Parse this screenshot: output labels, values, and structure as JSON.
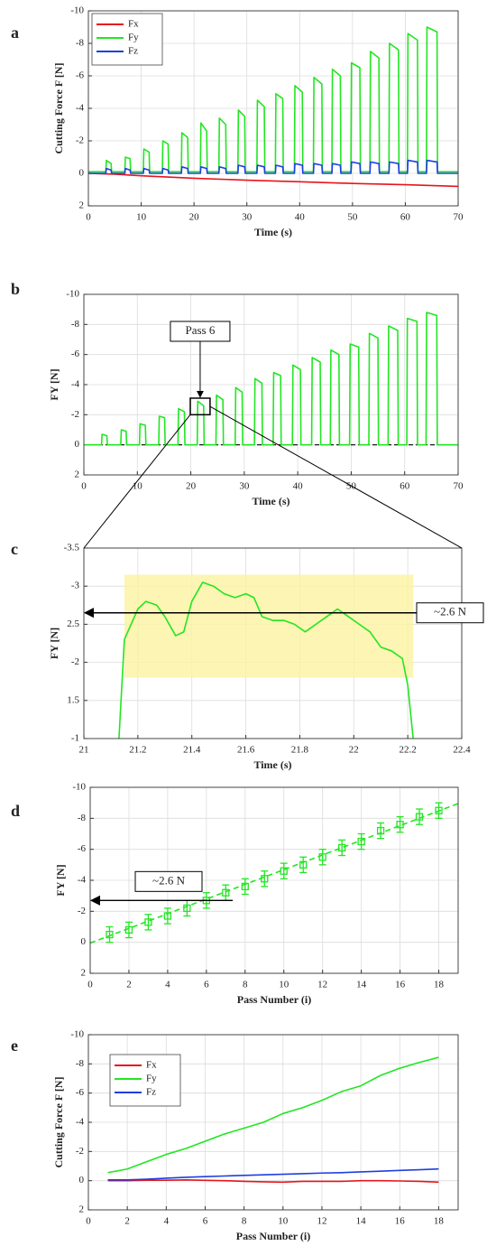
{
  "chart_data": [
    {
      "label": "a",
      "type": "line",
      "ylabel": "Cutting Force F [N]",
      "xlabel": "Time (s)",
      "xlim": [
        0,
        70
      ],
      "xticks": [
        0,
        10,
        20,
        30,
        40,
        50,
        60,
        70
      ],
      "ylim": [
        -10,
        2
      ],
      "yticks": [
        -10,
        -8,
        -6,
        -4,
        -2,
        0,
        2
      ],
      "y_reversed": true,
      "grid": true,
      "legend": "upper left",
      "x": [
        0,
        3.3,
        3.4,
        4.3,
        4.4,
        6.9,
        7.0,
        7.9,
        8.0,
        10.4,
        10.5,
        11.5,
        11.6,
        14.0,
        14.1,
        15.1,
        15.2,
        17.6,
        17.7,
        18.8,
        18.9,
        21.2,
        21.3,
        22.4,
        22.5,
        24.7,
        24.8,
        26.0,
        26.1,
        28.3,
        28.4,
        29.6,
        29.7,
        31.9,
        32.0,
        33.3,
        33.4,
        35.4,
        35.5,
        36.8,
        36.9,
        39.0,
        39.1,
        40.5,
        40.6,
        42.6,
        42.7,
        44.2,
        44.3,
        46.1,
        46.2,
        47.7,
        47.8,
        49.7,
        49.8,
        51.4,
        51.5,
        53.3,
        53.4,
        55.0,
        55.1,
        56.9,
        57.0,
        58.7,
        58.8,
        60.4,
        60.5,
        62.3,
        62.4,
        64.0,
        64.1,
        66.0,
        66.1,
        70
      ],
      "series": [
        {
          "name": "Fx",
          "color": "#e8141c",
          "x": [
            0,
            5,
            10,
            20,
            30,
            40,
            50,
            60,
            70
          ],
          "values": [
            0,
            0.05,
            0.15,
            0.3,
            0.42,
            0.52,
            0.62,
            0.7,
            0.8
          ]
        },
        {
          "name": "Fy",
          "color": "#22e622",
          "values": [
            -0.1,
            -0.1,
            -0.8,
            -0.6,
            -0.1,
            -0.1,
            -1.0,
            -0.9,
            -0.1,
            -0.1,
            -1.5,
            -1.3,
            -0.1,
            -0.1,
            -2.0,
            -1.8,
            -0.1,
            -0.1,
            -2.5,
            -2.2,
            -0.1,
            -0.1,
            -3.1,
            -2.6,
            -0.1,
            -0.1,
            -3.4,
            -3.0,
            -0.1,
            -0.1,
            -3.9,
            -3.5,
            -0.1,
            -0.1,
            -4.5,
            -4.1,
            -0.1,
            -0.1,
            -4.9,
            -4.6,
            -0.1,
            -0.1,
            -5.4,
            -5.0,
            -0.1,
            -0.1,
            -5.9,
            -5.5,
            -0.1,
            -0.1,
            -6.4,
            -6.0,
            -0.1,
            -0.1,
            -6.8,
            -6.5,
            -0.1,
            -0.1,
            -7.5,
            -7.1,
            -0.1,
            -0.1,
            -8.0,
            -7.6,
            -0.1,
            -0.1,
            -8.6,
            -8.2,
            -0.1,
            -0.1,
            -9.0,
            -8.7,
            -0.1,
            -0.1
          ]
        },
        {
          "name": "Fz",
          "color": "#1e3fe0",
          "values": [
            0,
            0,
            -0.3,
            -0.2,
            0,
            0,
            -0.3,
            -0.2,
            0,
            0,
            -0.3,
            -0.2,
            0,
            0,
            -0.3,
            -0.2,
            0,
            0,
            -0.4,
            -0.3,
            0,
            0,
            -0.4,
            -0.3,
            0,
            0,
            -0.4,
            -0.3,
            0,
            0,
            -0.5,
            -0.4,
            0,
            0,
            -0.5,
            -0.4,
            0,
            0,
            -0.5,
            -0.4,
            0,
            0,
            -0.6,
            -0.5,
            0,
            0,
            -0.6,
            -0.5,
            0,
            0,
            -0.6,
            -0.5,
            0,
            0,
            -0.7,
            -0.6,
            0,
            0,
            -0.7,
            -0.6,
            0,
            0,
            -0.7,
            -0.6,
            0,
            0,
            -0.8,
            -0.7,
            0,
            0,
            -0.8,
            -0.7,
            0,
            0
          ]
        }
      ]
    },
    {
      "label": "b",
      "type": "line",
      "ylabel": "FY [N]",
      "xlabel": "Time (s)",
      "xlim": [
        0,
        70
      ],
      "xticks": [
        0,
        10,
        20,
        30,
        40,
        50,
        60,
        70
      ],
      "ylim": [
        -10,
        2
      ],
      "yticks": [
        -10,
        -8,
        -6,
        -4,
        -2,
        0,
        2
      ],
      "y_reversed": true,
      "grid": true,
      "reference_line": 0,
      "zoom_box": {
        "x": [
          19.9,
          23.6
        ],
        "y": [
          -2.0,
          -3.1
        ]
      },
      "zoom_label": "Pass 6",
      "x": [
        0,
        3.3,
        3.4,
        4.3,
        4.4,
        6.9,
        7.0,
        7.9,
        8.0,
        10.4,
        10.5,
        11.5,
        11.6,
        14.0,
        14.1,
        15.1,
        15.2,
        17.6,
        17.7,
        18.8,
        18.9,
        21.2,
        21.3,
        22.4,
        22.5,
        24.7,
        24.8,
        26.0,
        26.1,
        28.3,
        28.4,
        29.6,
        29.7,
        31.9,
        32.0,
        33.3,
        33.4,
        35.4,
        35.5,
        36.8,
        36.9,
        39.0,
        39.1,
        40.5,
        40.6,
        42.6,
        42.7,
        44.2,
        44.3,
        46.1,
        46.2,
        47.7,
        47.8,
        49.7,
        49.8,
        51.4,
        51.5,
        53.3,
        53.4,
        55.0,
        55.1,
        56.9,
        57.0,
        58.7,
        58.8,
        60.4,
        60.5,
        62.3,
        62.4,
        64.0,
        64.1,
        66.0,
        66.1,
        70
      ],
      "series": [
        {
          "color": "#22e622",
          "values": [
            0,
            0,
            -0.7,
            -0.6,
            0,
            0,
            -1.0,
            -0.9,
            0,
            0,
            -1.4,
            -1.3,
            0,
            0,
            -1.9,
            -1.8,
            0,
            0,
            -2.4,
            -2.2,
            0,
            0,
            -2.9,
            -2.6,
            0,
            0,
            -3.3,
            -3.0,
            0,
            0,
            -3.8,
            -3.5,
            0,
            0,
            -4.4,
            -4.1,
            0,
            0,
            -4.8,
            -4.6,
            0,
            0,
            -5.3,
            -5.0,
            0,
            0,
            -5.8,
            -5.5,
            0,
            0,
            -6.3,
            -6.0,
            0,
            0,
            -6.7,
            -6.5,
            0,
            0,
            -7.4,
            -7.1,
            0,
            0,
            -7.9,
            -7.6,
            0,
            0,
            -8.4,
            -8.2,
            0,
            0,
            -8.8,
            -8.6,
            0,
            0
          ]
        }
      ]
    },
    {
      "label": "c",
      "type": "line",
      "ylabel": "FY [N]",
      "xlabel": "Time (s)",
      "xlim": [
        21,
        22.4
      ],
      "xticks": [
        21,
        21.2,
        21.4,
        21.6,
        21.8,
        22,
        22.2,
        22.4
      ],
      "ylim": [
        -3.5,
        -1
      ],
      "yticks": [
        -3.5,
        -3,
        {
          "value": -2.5,
          "label": "2.5"
        },
        -2,
        {
          "value": -1.5,
          "label": "1.5"
        },
        -1
      ],
      "y_reversed": true,
      "grid": true,
      "band": {
        "x": [
          21.15,
          22.22
        ],
        "y": [
          -1.8,
          -3.15
        ],
        "color": "#fbf3a0"
      },
      "annotation": {
        "text": "~2.6 N",
        "value": -2.65
      },
      "x": [
        21.13,
        21.15,
        21.2,
        21.23,
        21.27,
        21.3,
        21.34,
        21.37,
        21.4,
        21.44,
        21.48,
        21.52,
        21.56,
        21.6,
        21.63,
        21.66,
        21.7,
        21.74,
        21.78,
        21.82,
        21.86,
        21.9,
        21.94,
        21.98,
        22.02,
        22.06,
        22.1,
        22.14,
        22.18,
        22.2,
        22.22
      ],
      "series": [
        {
          "color": "#22e622",
          "values": [
            -1.0,
            -2.3,
            -2.7,
            -2.8,
            -2.75,
            -2.6,
            -2.35,
            -2.4,
            -2.8,
            -3.05,
            -3.0,
            -2.9,
            -2.85,
            -2.9,
            -2.85,
            -2.6,
            -2.55,
            -2.55,
            -2.5,
            -2.4,
            -2.5,
            -2.6,
            -2.7,
            -2.6,
            -2.5,
            -2.4,
            -2.2,
            -2.15,
            -2.05,
            -1.7,
            -1.0
          ]
        }
      ]
    },
    {
      "label": "d",
      "type": "errorbar",
      "ylabel": "FY [N]",
      "xlabel": "Pass Number (i)",
      "xlim": [
        0,
        19
      ],
      "xticks": [
        0,
        2,
        4,
        6,
        8,
        10,
        12,
        14,
        16,
        18
      ],
      "ylim": [
        -10,
        2
      ],
      "yticks": [
        -10,
        -8,
        -6,
        -4,
        -2,
        0,
        2
      ],
      "y_reversed": true,
      "grid": true,
      "color": "#22e622",
      "x": [
        1,
        2,
        3,
        4,
        5,
        6,
        7,
        8,
        9,
        10,
        11,
        12,
        13,
        14,
        15,
        16,
        17,
        18
      ],
      "values": [
        -0.5,
        -0.8,
        -1.3,
        -1.7,
        -2.2,
        -2.7,
        -3.2,
        -3.6,
        -4.1,
        -4.6,
        -5.0,
        -5.5,
        -6.1,
        -6.5,
        -7.2,
        -7.6,
        -8.1,
        -8.5
      ],
      "errors": [
        0.5,
        0.5,
        0.5,
        0.5,
        0.5,
        0.5,
        0.5,
        0.5,
        0.5,
        0.5,
        0.5,
        0.5,
        0.5,
        0.5,
        0.5,
        0.5,
        0.5,
        0.5
      ],
      "fit": {
        "x": [
          0,
          19
        ],
        "values": [
          0.05,
          -8.95
        ]
      },
      "annotation": {
        "text": "~2.6 N",
        "value": -2.7
      }
    },
    {
      "label": "e",
      "type": "line",
      "ylabel": "Cutting Force F [N]",
      "xlabel": "Pass Number (i)",
      "xlim": [
        0,
        19
      ],
      "xticks": [
        0,
        2,
        4,
        6,
        8,
        10,
        12,
        14,
        16,
        18
      ],
      "ylim": [
        -10,
        2
      ],
      "yticks": [
        -10,
        -8,
        -6,
        -4,
        -2,
        0,
        2
      ],
      "y_reversed": true,
      "grid": true,
      "legend": "upper left",
      "x": [
        1,
        2,
        3,
        4,
        5,
        6,
        7,
        8,
        9,
        10,
        11,
        12,
        13,
        14,
        15,
        16,
        17,
        18
      ],
      "series": [
        {
          "name": "Fx",
          "color": "#e8141c",
          "values": [
            0,
            0,
            -0.03,
            -0.03,
            -0.05,
            -0.02,
            0,
            0.05,
            0.08,
            0.1,
            0.05,
            0.05,
            0.05,
            0,
            0,
            0.02,
            0.05,
            0.1
          ]
        },
        {
          "name": "Fy",
          "color": "#22e622",
          "values": [
            -0.55,
            -0.8,
            -1.3,
            -1.8,
            -2.2,
            -2.7,
            -3.2,
            -3.6,
            -4.0,
            -4.6,
            -5.0,
            -5.5,
            -6.1,
            -6.5,
            -7.2,
            -7.7,
            -8.1,
            -8.45
          ]
        },
        {
          "name": "Fz",
          "color": "#1e3fe0",
          "values": [
            -0.05,
            -0.05,
            -0.1,
            -0.17,
            -0.23,
            -0.28,
            -0.32,
            -0.36,
            -0.4,
            -0.44,
            -0.48,
            -0.52,
            -0.55,
            -0.6,
            -0.65,
            -0.7,
            -0.75,
            -0.8
          ]
        }
      ]
    }
  ]
}
